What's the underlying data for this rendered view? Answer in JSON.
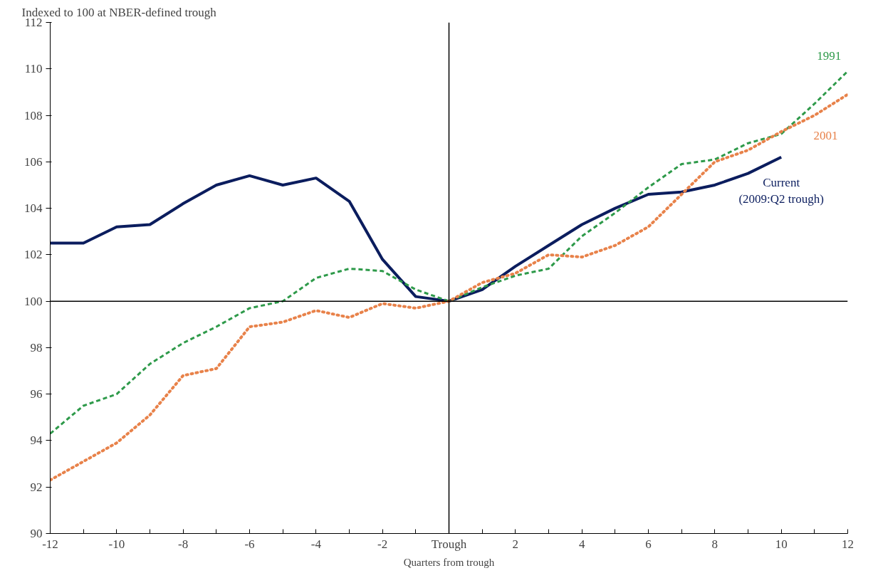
{
  "chart_data": {
    "type": "line",
    "subtitle": "Indexed to 100 at NBER-defined trough",
    "xlabel": "Quarters from trough",
    "x": [
      -12,
      -11,
      -10,
      -9,
      -8,
      -7,
      -6,
      -5,
      -4,
      -3,
      -2,
      -1,
      0,
      1,
      2,
      3,
      4,
      5,
      6,
      7,
      8,
      9,
      10,
      11,
      12
    ],
    "series": [
      {
        "name": "Current\n(2009:Q2 trough)",
        "color": "#0b1d5e",
        "line_style": "solid",
        "values": [
          102.5,
          102.5,
          103.2,
          103.3,
          104.2,
          105.0,
          105.4,
          105.0,
          105.3,
          104.3,
          101.8,
          100.2,
          100,
          100.5,
          101.5,
          102.4,
          103.3,
          104.0,
          104.6,
          104.7,
          105.0,
          105.5,
          106.2,
          null,
          null
        ]
      },
      {
        "name": "1991",
        "color": "#2e9a4a",
        "line_style": "dashed",
        "values": [
          94.3,
          95.5,
          96.0,
          97.3,
          98.2,
          98.9,
          99.7,
          100.0,
          101.0,
          101.4,
          101.3,
          100.5,
          100,
          100.6,
          101.1,
          101.4,
          102.8,
          103.8,
          104.9,
          105.9,
          106.1,
          106.8,
          107.2,
          108.5,
          109.9
        ]
      },
      {
        "name": "2001",
        "color": "#e8824a",
        "line_style": "dotted",
        "values": [
          92.3,
          93.1,
          93.9,
          95.1,
          96.8,
          97.1,
          98.9,
          99.1,
          99.6,
          99.3,
          99.9,
          99.7,
          100,
          100.8,
          101.2,
          102.0,
          101.9,
          102.4,
          103.2,
          104.6,
          106.0,
          106.5,
          107.3,
          108.0,
          108.9
        ]
      }
    ],
    "xlim": [
      -12,
      12
    ],
    "ylim": [
      90,
      112
    ],
    "xticks": [
      -12,
      {
        "value": -11,
        "label": null
      },
      -10,
      {
        "value": -9,
        "label": null
      },
      -8,
      {
        "value": -7,
        "label": null
      },
      -6,
      {
        "value": -5,
        "label": null
      },
      -4,
      {
        "value": -3,
        "label": null
      },
      -2,
      {
        "value": -1,
        "label": null
      },
      {
        "value": 0,
        "label": "Trough"
      },
      {
        "value": 1,
        "label": null
      },
      2,
      {
        "value": 3,
        "label": null
      },
      4,
      {
        "value": 5,
        "label": null
      },
      6,
      {
        "value": 7,
        "label": null
      },
      8,
      {
        "value": 9,
        "label": null
      },
      10,
      {
        "value": 11,
        "label": null
      },
      12
    ],
    "yticks": [
      90,
      92,
      94,
      96,
      98,
      100,
      102,
      104,
      106,
      108,
      110,
      112
    ],
    "ref_lines": [
      {
        "axis": "x",
        "value": 0,
        "color": "#000000"
      },
      {
        "axis": "y",
        "value": 100,
        "color": "#000000"
      }
    ],
    "grid": false
  }
}
